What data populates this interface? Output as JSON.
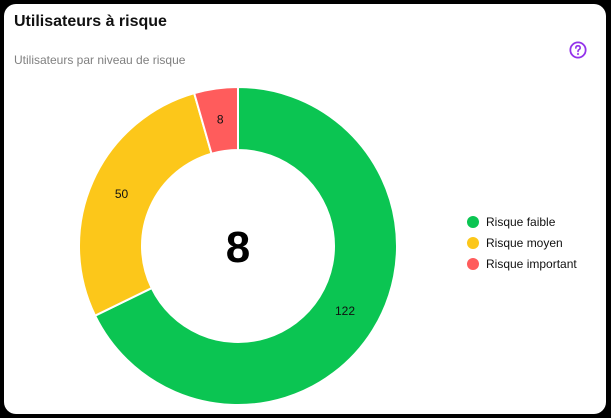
{
  "card": {
    "title": "Utilisateurs à risque",
    "subtitle": "Utilisateurs par niveau de risque",
    "help_icon": "help-circle-icon",
    "help_color": "#9333ea"
  },
  "center_value": "8",
  "legend": [
    {
      "label": "Risque faible",
      "color": "#0bc552"
    },
    {
      "label": "Risque moyen",
      "color": "#fcc71a"
    },
    {
      "label": "Risque important",
      "color": "#ff5c5c"
    }
  ],
  "chart_data": {
    "type": "pie",
    "subtype": "donut",
    "title": "Utilisateurs à risque",
    "subtitle": "Utilisateurs par niveau de risque",
    "categories": [
      "Risque faible",
      "Risque moyen",
      "Risque important"
    ],
    "values": [
      122,
      50,
      8
    ],
    "colors": [
      "#0bc552",
      "#fcc71a",
      "#ff5c5c"
    ],
    "data_labels": [
      "122",
      "50",
      "8"
    ],
    "center_label": "8",
    "legend_position": "right"
  }
}
